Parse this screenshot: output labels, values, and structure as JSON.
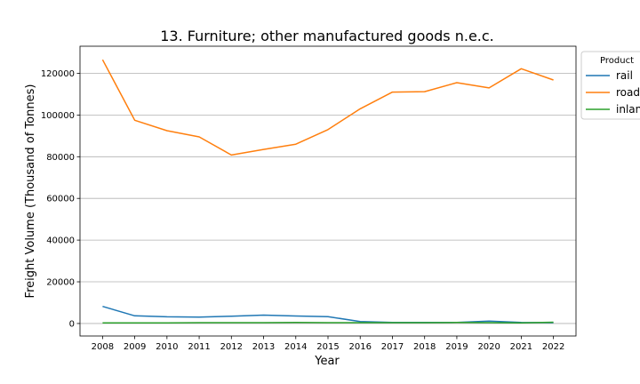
{
  "chart_data": {
    "type": "line",
    "title": "13. Furniture; other manufactured goods n.e.c.",
    "xlabel": "Year",
    "ylabel": "Freight Volume (Thousand of Tonnes)",
    "x": [
      "2008",
      "2009",
      "2010",
      "2011",
      "2012",
      "2013",
      "2014",
      "2015",
      "2016",
      "2017",
      "2018",
      "2019",
      "2020",
      "2021",
      "2022"
    ],
    "xlim": [
      2007.3,
      2022.7
    ],
    "ylim": [
      -6000,
      133000
    ],
    "yticks": [
      0,
      20000,
      40000,
      60000,
      80000,
      100000,
      120000
    ],
    "grid": "horizontal",
    "legend": {
      "title": "Product",
      "placement": "outside-top-right"
    },
    "series": [
      {
        "name": "rail",
        "color": "#1f77b4",
        "values": [
          8200,
          3700,
          3200,
          3100,
          3500,
          4000,
          3600,
          3300,
          900,
          500,
          500,
          500,
          1100,
          500,
          400
        ]
      },
      {
        "name": "road",
        "color": "#ff7f0e",
        "values": [
          126500,
          97500,
          92500,
          89500,
          80800,
          83500,
          86000,
          93000,
          103000,
          111000,
          111200,
          115500,
          113000,
          122200,
          116800
        ]
      },
      {
        "name": "inland waterway",
        "color": "#2ca02c",
        "values": [
          300,
          300,
          300,
          400,
          400,
          400,
          500,
          400,
          400,
          400,
          400,
          500,
          400,
          300,
          600
        ]
      }
    ]
  }
}
